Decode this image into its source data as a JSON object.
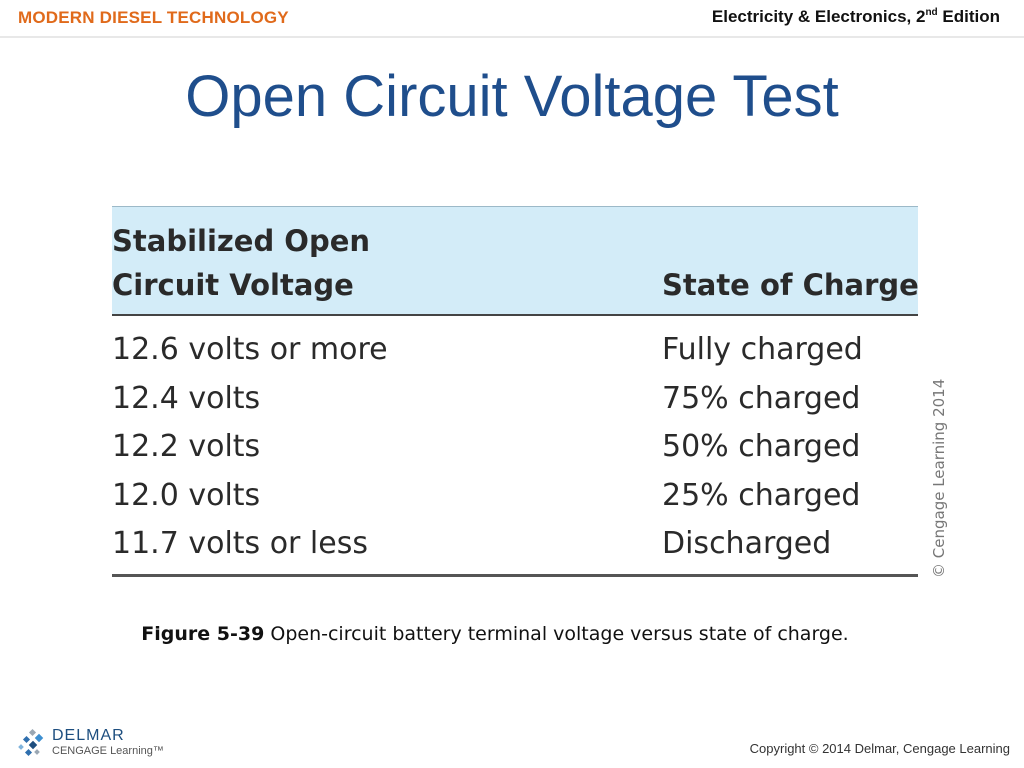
{
  "header": {
    "brand": "MODERN DIESEL TECHNOLOGY",
    "edition_prefix": "Electricity & Electronics, 2",
    "edition_sup": "nd",
    "edition_suffix": " Edition"
  },
  "slide": {
    "title": "Open Circuit Voltage Test"
  },
  "table": {
    "header_col1_line1": "Stabilized Open",
    "header_col1_line2": "Circuit Voltage",
    "header_col2": "State of Charge",
    "rows": [
      {
        "voltage": "12.6 volts or more",
        "state": "Fully charged"
      },
      {
        "voltage": "12.4 volts",
        "state": "75% charged"
      },
      {
        "voltage": "12.2 volts",
        "state": "50% charged"
      },
      {
        "voltage": "12.0 volts",
        "state": "25% charged"
      },
      {
        "voltage": "11.7 volts or less",
        "state": "Discharged"
      }
    ],
    "credit": "© Cengage Learning 2014"
  },
  "caption": {
    "label": "Figure 5-39",
    "text": " Open-circuit battery terminal voltage versus state of charge."
  },
  "footer": {
    "logo_name": "DELMAR",
    "logo_sub": "CENGAGE Learning",
    "logo_tm": "™",
    "copyright": "Copyright © 2014 Delmar, Cengage Learning"
  },
  "colors": {
    "brand_orange": "#e06a1b",
    "title_blue": "#1f4e8c",
    "table_header_bg": "#d3ecf8"
  }
}
